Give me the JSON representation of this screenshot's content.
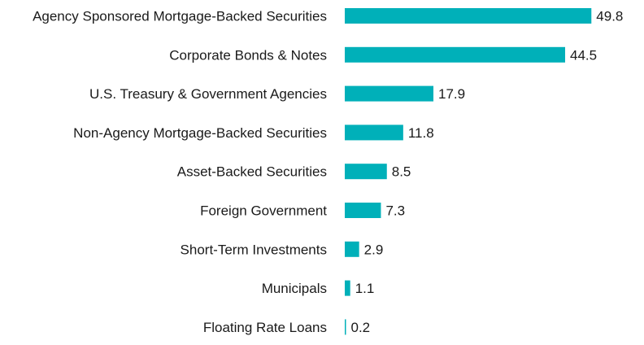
{
  "chart_data": {
    "type": "bar",
    "orientation": "horizontal",
    "categories": [
      "Agency Sponsored Mortgage-Backed Securities",
      "Corporate Bonds & Notes",
      "U.S. Treasury & Government Agencies",
      "Non-Agency Mortgage-Backed Securities",
      "Asset-Backed Securities",
      "Foreign Government",
      "Short-Term Investments",
      "Municipals",
      "Floating Rate Loans"
    ],
    "values": [
      49.8,
      44.5,
      17.9,
      11.8,
      8.5,
      7.3,
      2.9,
      1.1,
      0.2
    ],
    "value_labels": [
      "49.8",
      "44.5",
      "17.9",
      "11.8",
      "8.5",
      "7.3",
      "2.9",
      "1.1",
      "0.2"
    ],
    "title": "",
    "xlabel": "",
    "ylabel": "",
    "xlim": [
      0,
      50
    ],
    "grid": false,
    "legend": "none",
    "bar_color": "#00b0b9"
  }
}
